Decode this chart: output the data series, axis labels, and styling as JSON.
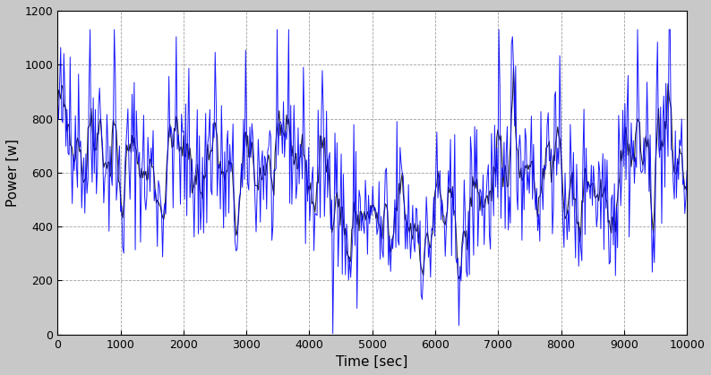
{
  "title": "",
  "xlabel": "Time [sec]",
  "ylabel": "Power [w]",
  "xlim": [
    0,
    10000
  ],
  "ylim": [
    0,
    1200
  ],
  "xticks": [
    0,
    1000,
    2000,
    3000,
    4000,
    5000,
    6000,
    7000,
    8000,
    9000,
    10000
  ],
  "yticks": [
    0,
    200,
    400,
    600,
    800,
    1000,
    1200
  ],
  "line_color_blue": "#0000ff",
  "line_color_black": "#000000",
  "background_color": "#c8c8c8",
  "plot_bg_color": "#ffffff",
  "fig_width": 7.94,
  "fig_height": 4.19,
  "dpi": 100,
  "seed": 42,
  "n_points": 600,
  "max_power": 1130
}
